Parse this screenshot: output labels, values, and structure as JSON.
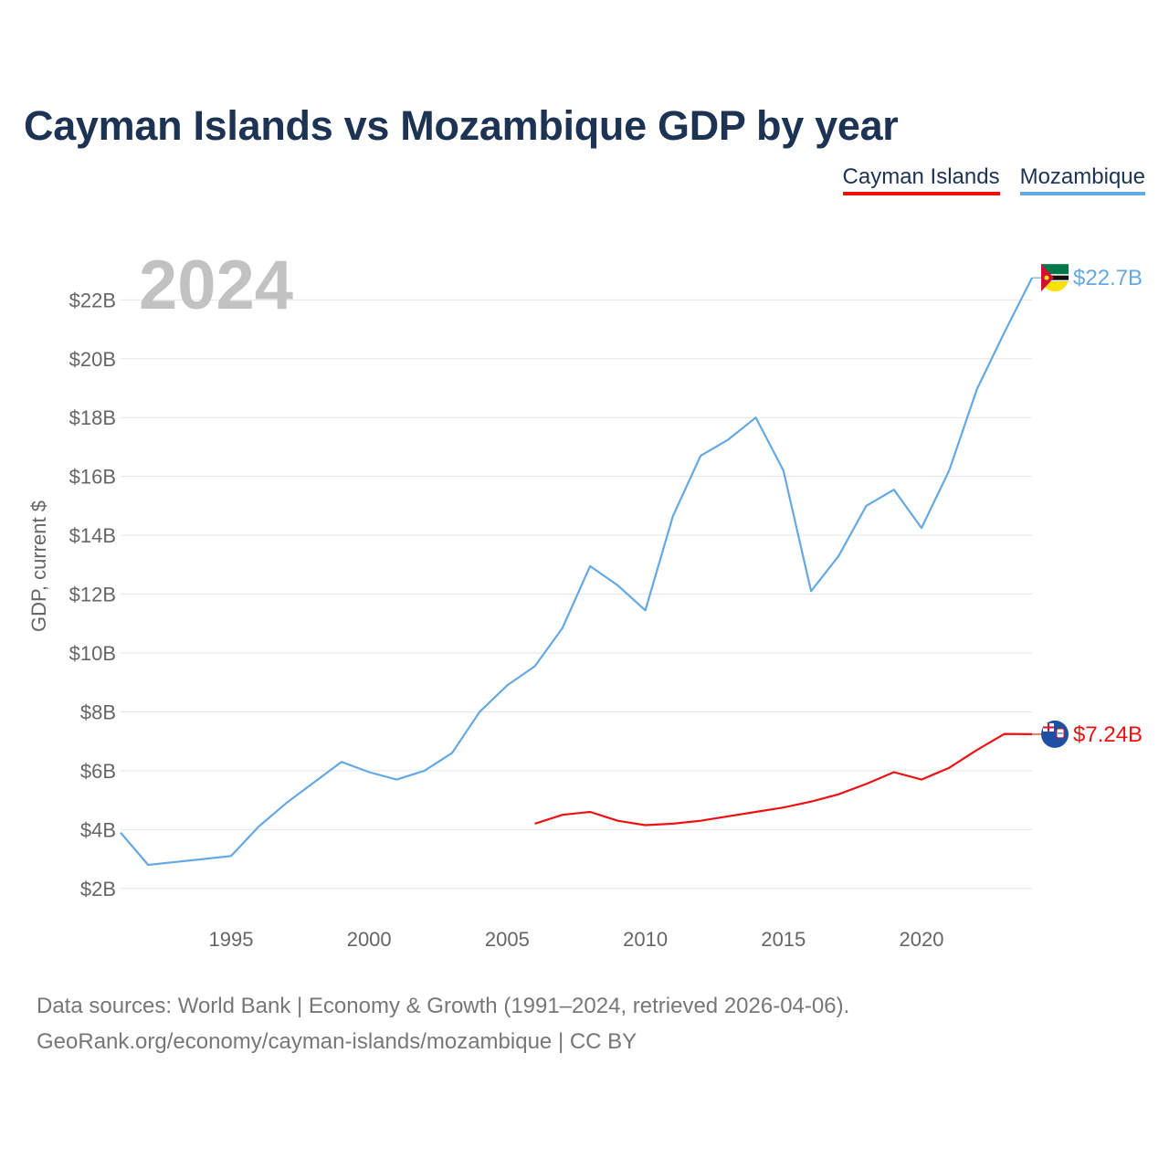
{
  "title": "Cayman Islands vs Mozambique GDP by year",
  "legend": {
    "cayman": "Cayman Islands",
    "mozambique": "Mozambique"
  },
  "source": {
    "line1": "Data sources: World Bank | Economy & Growth (1991–2024, retrieved 2026-04-06).",
    "line2": "GeoRank.org/economy/cayman-islands/mozambique | CC BY"
  },
  "colors": {
    "cayman": "#ee1111",
    "mozambique": "#64a8e4",
    "title": "#1d3353"
  },
  "chart_data": {
    "type": "line",
    "title": "Cayman Islands vs Mozambique GDP by year",
    "highlight_year": "2024",
    "ylabel": "GDP, current $",
    "xlabel": "",
    "xlim": [
      1991,
      2024
    ],
    "ylim": [
      1.0,
      23.5
    ],
    "x_ticks": [
      1995,
      2000,
      2005,
      2010,
      2015,
      2020
    ],
    "y_ticks": [
      2,
      4,
      6,
      8,
      10,
      12,
      14,
      16,
      18,
      20,
      22
    ],
    "y_tick_labels": [
      "$2B",
      "$4B",
      "$6B",
      "$8B",
      "$10B",
      "$12B",
      "$14B",
      "$16B",
      "$18B",
      "$20B",
      "$22B"
    ],
    "series": [
      {
        "name": "Mozambique",
        "color": "#64a8e4",
        "end_label": "$22.7B",
        "x": [
          1991,
          1992,
          1993,
          1994,
          1995,
          1996,
          1997,
          1998,
          1999,
          2000,
          2001,
          2002,
          2003,
          2004,
          2005,
          2006,
          2007,
          2008,
          2009,
          2010,
          2011,
          2012,
          2013,
          2014,
          2015,
          2016,
          2017,
          2018,
          2019,
          2020,
          2021,
          2022,
          2023,
          2024
        ],
        "values": [
          3.9,
          2.8,
          2.9,
          3.0,
          3.1,
          4.1,
          4.9,
          5.6,
          6.3,
          5.95,
          5.7,
          6.0,
          6.6,
          8.0,
          8.9,
          9.55,
          10.85,
          12.95,
          12.3,
          11.45,
          14.65,
          16.7,
          17.25,
          18.0,
          16.2,
          12.1,
          13.3,
          15.0,
          15.55,
          14.25,
          16.2,
          18.95,
          20.9,
          22.75
        ]
      },
      {
        "name": "Cayman Islands",
        "color": "#ee1111",
        "end_label": "$7.24B",
        "x": [
          2006,
          2007,
          2008,
          2009,
          2010,
          2011,
          2012,
          2013,
          2014,
          2015,
          2016,
          2017,
          2018,
          2019,
          2020,
          2021,
          2022,
          2023,
          2024
        ],
        "values": [
          4.2,
          4.5,
          4.6,
          4.3,
          4.15,
          4.2,
          4.3,
          4.45,
          4.6,
          4.75,
          4.95,
          5.2,
          5.55,
          5.95,
          5.7,
          6.1,
          6.7,
          7.25,
          7.24
        ]
      }
    ]
  }
}
